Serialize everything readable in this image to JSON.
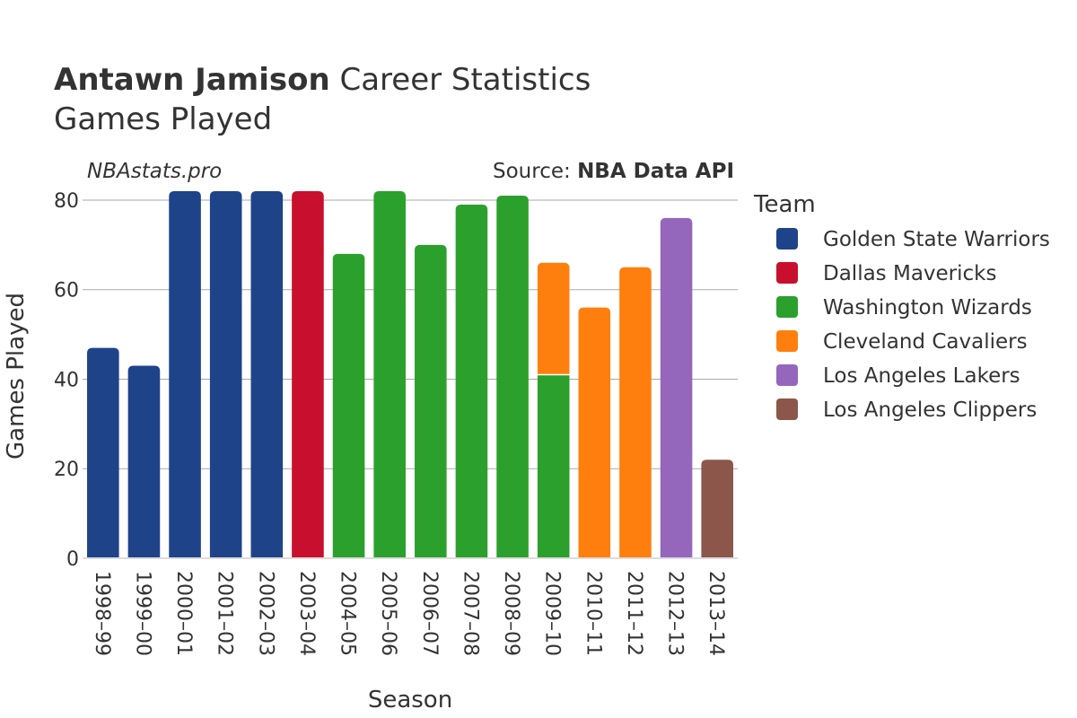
{
  "header": {
    "title_bold": "Antawn Jamison",
    "title_rest": " Career Statistics",
    "subtitle": "Games Played",
    "brand": "NBAstats.pro",
    "source_label": "Source: ",
    "source_name": "NBA Data API"
  },
  "chart_data": {
    "type": "bar",
    "stacked": true,
    "xlabel": "Season",
    "ylabel": "Games Played",
    "ylim": [
      0,
      83
    ],
    "yticks": [
      0,
      20,
      40,
      60,
      80
    ],
    "grid": true,
    "legend_title": "Team",
    "legend_position": "right",
    "categories": [
      "1998–99",
      "1999–00",
      "2000–01",
      "2001–02",
      "2002–03",
      "2003–04",
      "2004–05",
      "2005–06",
      "2006–07",
      "2007–08",
      "2008–09",
      "2009–10",
      "2010–11",
      "2011–12",
      "2012–13",
      "2013–14"
    ],
    "series": [
      {
        "name": "Golden State Warriors",
        "color": "#1f4389",
        "values": [
          47,
          43,
          82,
          82,
          82,
          0,
          0,
          0,
          0,
          0,
          0,
          0,
          0,
          0,
          0,
          0
        ]
      },
      {
        "name": "Dallas Mavericks",
        "color": "#c8102e",
        "values": [
          0,
          0,
          0,
          0,
          0,
          82,
          0,
          0,
          0,
          0,
          0,
          0,
          0,
          0,
          0,
          0
        ]
      },
      {
        "name": "Washington Wizards",
        "color": "#2ca02c",
        "values": [
          0,
          0,
          0,
          0,
          0,
          0,
          68,
          82,
          70,
          79,
          81,
          41,
          0,
          0,
          0,
          0
        ]
      },
      {
        "name": "Cleveland Cavaliers",
        "color": "#ff7f0e",
        "values": [
          0,
          0,
          0,
          0,
          0,
          0,
          0,
          0,
          0,
          0,
          0,
          25,
          56,
          65,
          0,
          0
        ]
      },
      {
        "name": "Los Angeles Lakers",
        "color": "#9467bd",
        "values": [
          0,
          0,
          0,
          0,
          0,
          0,
          0,
          0,
          0,
          0,
          0,
          0,
          0,
          0,
          76,
          0
        ]
      },
      {
        "name": "Los Angeles Clippers",
        "color": "#8c564b",
        "values": [
          0,
          0,
          0,
          0,
          0,
          0,
          0,
          0,
          0,
          0,
          0,
          0,
          0,
          0,
          0,
          22
        ]
      }
    ]
  }
}
